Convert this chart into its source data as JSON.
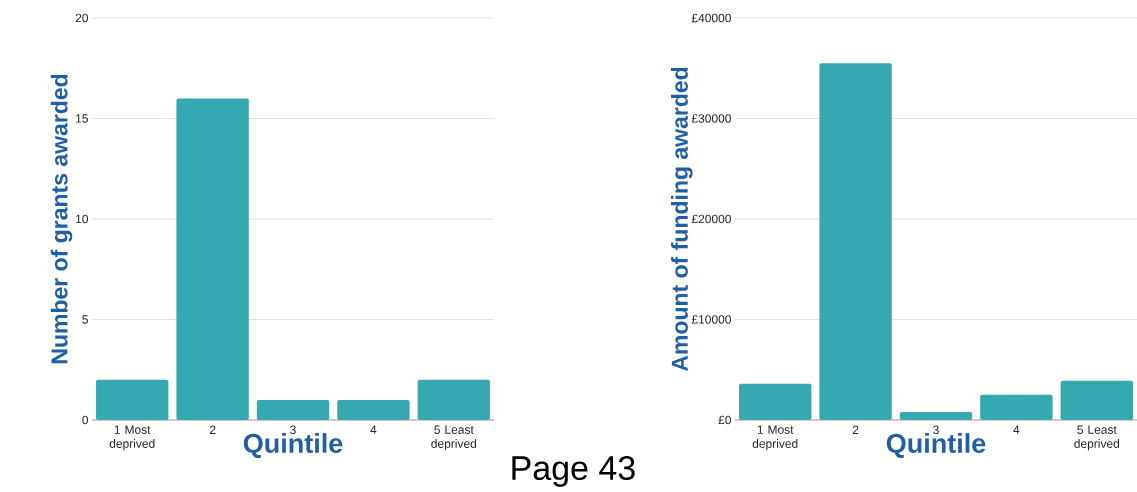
{
  "chart_data": [
    {
      "type": "bar",
      "ylabel": "Number of grants awarded",
      "xlabel": "Quintile",
      "categories": [
        "1 Most deprived",
        "2",
        "3",
        "4",
        "5 Least deprived"
      ],
      "values": [
        2,
        16,
        1,
        1,
        2
      ],
      "color": "#36a8b1",
      "ylim": [
        0,
        20
      ],
      "yticks": [
        0,
        5,
        10,
        15,
        20
      ],
      "grid": "y",
      "annotations": [
        "Page 43"
      ]
    },
    {
      "type": "bar",
      "ylabel": "Amount of funding awarded",
      "xlabel": "Quintile",
      "categories": [
        "1 Most deprived",
        "2",
        "3",
        "4",
        "5 Least deprived"
      ],
      "values": [
        3600,
        35500,
        800,
        2500,
        3900
      ],
      "color": "#36a8b1",
      "ylim": [
        0,
        40000
      ],
      "yticks": [
        {
          "value": 0,
          "label": "£0"
        },
        {
          "value": 10000,
          "label": "£10000"
        },
        {
          "value": 20000,
          "label": "£20000"
        },
        {
          "value": 30000,
          "label": "£30000"
        },
        {
          "value": 40000,
          "label": "£40000"
        }
      ],
      "grid": "y"
    }
  ]
}
